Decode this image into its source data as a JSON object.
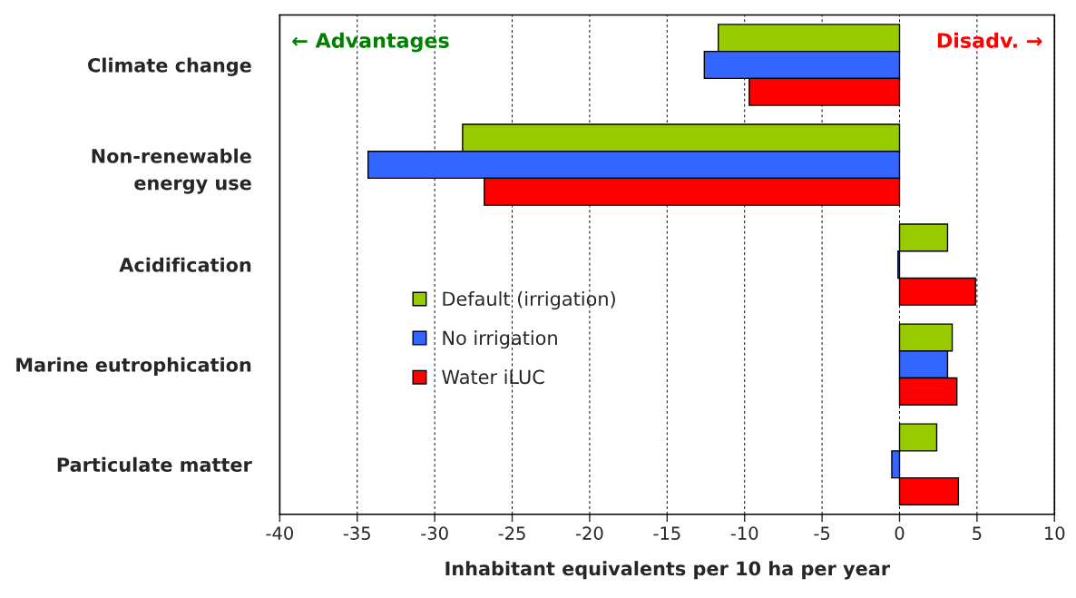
{
  "chart_data": {
    "type": "bar",
    "orientation": "horizontal",
    "xlabel": "Inhabitant equivalents per 10 ha per year",
    "categories": [
      "Climate change",
      "Non-renewable\nenergy use",
      "Acidification",
      "Marine eutrophication",
      "Particulate matter"
    ],
    "series": [
      {
        "name": "Default (irrigation)",
        "color": "#99cc00",
        "values": [
          -11.7,
          -28.2,
          3.1,
          3.4,
          2.4
        ]
      },
      {
        "name": "No irrigation",
        "color": "#3366ff",
        "values": [
          -12.6,
          -34.3,
          -0.1,
          3.1,
          -0.5
        ]
      },
      {
        "name": "Water iLUC",
        "color": "#ff0000",
        "values": [
          -9.7,
          -26.8,
          4.9,
          3.7,
          3.8
        ]
      }
    ],
    "xlim": [
      -40,
      10
    ],
    "xticks": [
      -40,
      -35,
      -30,
      -25,
      -20,
      -15,
      -10,
      -5,
      0,
      5,
      10
    ],
    "grid": "x",
    "legend": "left",
    "annotations": [
      "← Advantages",
      "Disadv. →"
    ]
  }
}
